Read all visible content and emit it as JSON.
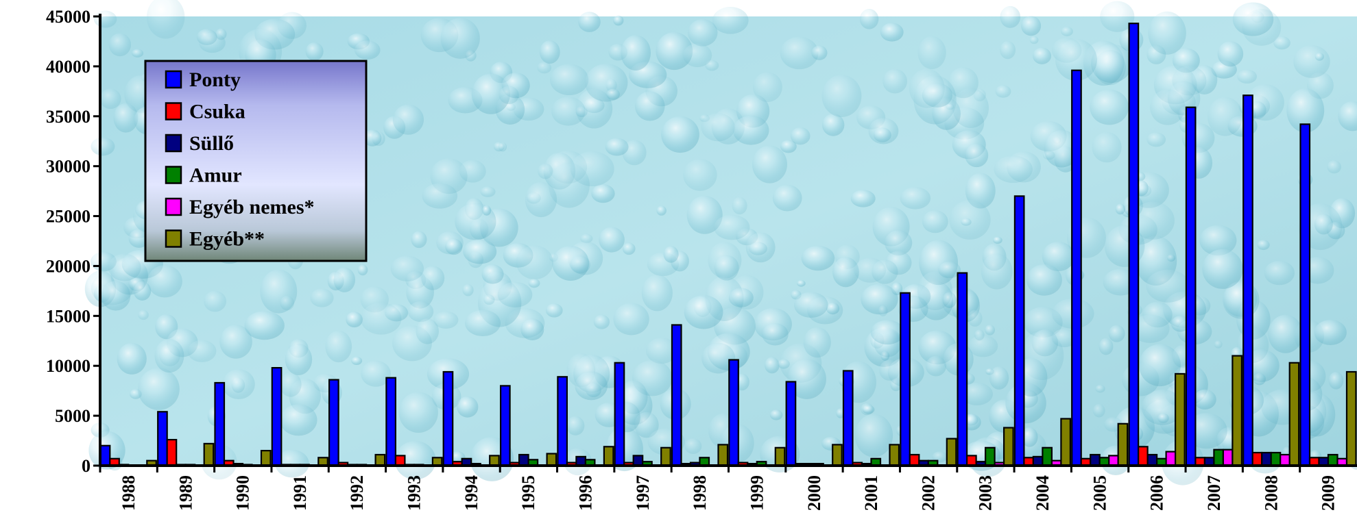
{
  "chart_data": {
    "type": "bar",
    "title": "",
    "xlabel": "",
    "ylabel": "",
    "ylim": [
      0,
      45000
    ],
    "yticks": [
      0,
      5000,
      10000,
      15000,
      20000,
      25000,
      30000,
      35000,
      40000,
      45000
    ],
    "grid": false,
    "legend_position": "top-left",
    "background": "water-droplets",
    "categories": [
      "1988",
      "1989",
      "1990",
      "1991",
      "1992",
      "1993",
      "1994",
      "1995",
      "1996",
      "1997",
      "1998",
      "1999",
      "2000",
      "2001",
      "2002",
      "2003",
      "2004",
      "2005",
      "2006",
      "2007",
      "2008",
      "2009"
    ],
    "series": [
      {
        "name": "Ponty",
        "color": "#0000ff",
        "values": [
          2000,
          5400,
          8300,
          9800,
          8600,
          8800,
          9400,
          8000,
          8900,
          10300,
          14100,
          10600,
          8400,
          9500,
          17300,
          19300,
          27000,
          39600,
          44300,
          35900,
          37100,
          34200
        ]
      },
      {
        "name": "Csuka",
        "color": "#ff0000",
        "values": [
          700,
          2600,
          500,
          100,
          300,
          1000,
          400,
          300,
          300,
          300,
          200,
          300,
          200,
          300,
          1100,
          1000,
          800,
          700,
          1900,
          800,
          1300,
          800
        ]
      },
      {
        "name": "Süllő",
        "color": "#000080",
        "values": [
          100,
          100,
          200,
          100,
          100,
          100,
          700,
          1100,
          900,
          1000,
          300,
          200,
          200,
          200,
          500,
          400,
          900,
          1100,
          1100,
          800,
          1300,
          800
        ]
      },
      {
        "name": "Amur",
        "color": "#008000",
        "values": [
          0,
          100,
          100,
          100,
          100,
          100,
          200,
          600,
          600,
          400,
          800,
          400,
          200,
          700,
          500,
          1800,
          1800,
          800,
          700,
          1600,
          1300,
          1100
        ]
      },
      {
        "name": "Egyéb nemes*",
        "color": "#ff00ff",
        "values": [
          0,
          0,
          0,
          0,
          0,
          0,
          0,
          0,
          0,
          0,
          0,
          0,
          0,
          0,
          0,
          300,
          500,
          1000,
          1400,
          1600,
          1100,
          700
        ]
      },
      {
        "name": "Egyéb**",
        "color": "#808000",
        "values": [
          500,
          2200,
          1500,
          800,
          1100,
          800,
          1000,
          1200,
          1900,
          1800,
          2100,
          1800,
          2100,
          2100,
          2700,
          3800,
          4700,
          4200,
          9200,
          11000,
          10300,
          9400
        ]
      }
    ]
  }
}
